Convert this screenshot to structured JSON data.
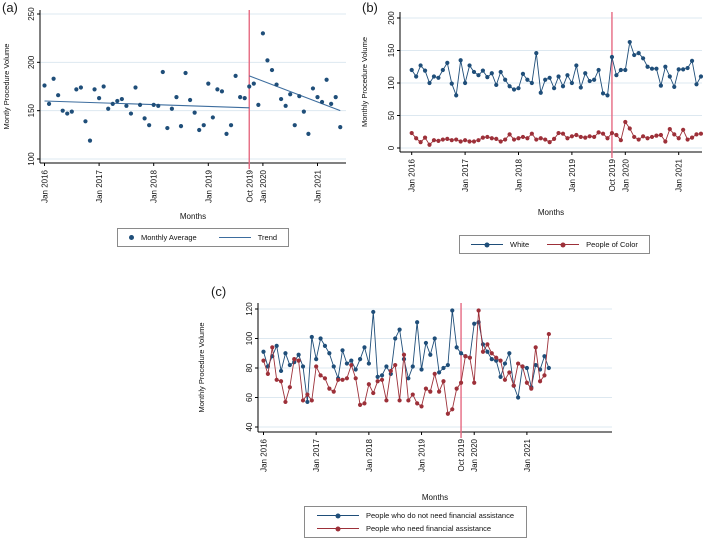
{
  "colors": {
    "background": "#ffffff",
    "grid": "#dde8f0",
    "axis": "#000000",
    "navy": "#1f4e79",
    "dark_red": "#9d3039",
    "trend_blue": "#3d6d9e",
    "vline_pink": "#e66a82"
  },
  "chart_data": [
    {
      "id": "a",
      "panel_label": "(a)",
      "type": "scatter",
      "ylabel": "Montly Procedure Volume",
      "xlabel": "Months",
      "ylim": [
        100,
        250
      ],
      "yticks": [
        100,
        150,
        200,
        250
      ],
      "x_start": "Jan 2016",
      "n_months": 66,
      "x_ticks": [
        {
          "label": "Jan 2016",
          "month": 0
        },
        {
          "label": "Jan 2017",
          "month": 12
        },
        {
          "label": "Jan 2018",
          "month": 24
        },
        {
          "label": "Jan 2019",
          "month": 36
        },
        {
          "label": "Oct 2019",
          "month": 45
        },
        {
          "label": "Jan 2020",
          "month": 48
        },
        {
          "label": "Jan 2021",
          "month": 60
        }
      ],
      "vline": {
        "month": 45,
        "label": "Oct 2019",
        "color": "#e66a82"
      },
      "series": [
        {
          "name": "Monthly Average",
          "color": "#1f4e79",
          "values": [
            176,
            157,
            183,
            166,
            150,
            147,
            149,
            172,
            174,
            139,
            119,
            172,
            163,
            175,
            152,
            157,
            160,
            162,
            155,
            147,
            174,
            156,
            142,
            135,
            156,
            155,
            190,
            132,
            152,
            164,
            134,
            189,
            161,
            148,
            130,
            135,
            178,
            143,
            172,
            170,
            126,
            135,
            186,
            164,
            163,
            175,
            178,
            156,
            230,
            202,
            192,
            177,
            162,
            155,
            167,
            135,
            165,
            149,
            126,
            173,
            164,
            159,
            182,
            157,
            164,
            133
          ]
        }
      ],
      "trend": {
        "name": "Trend",
        "color": "#3d6d9e",
        "segments": [
          {
            "months": [
              0,
              45
            ],
            "values": [
              160,
              153
            ]
          },
          {
            "months": [
              45,
              65
            ],
            "values": [
              186,
              150
            ]
          }
        ]
      },
      "legend": [
        {
          "label": "Monthly Average",
          "marker": "dot",
          "color": "#1f4e79"
        },
        {
          "label": "Trend",
          "marker": "line",
          "color": "#3d6d9e"
        }
      ]
    },
    {
      "id": "b",
      "panel_label": "(b)",
      "type": "line",
      "ylabel": "Monthly Procedure Volume",
      "xlabel": "Months",
      "ylim": [
        0,
        200
      ],
      "yticks": [
        0,
        50,
        100,
        150,
        200
      ],
      "x_start": "Jan 2016",
      "n_months": 66,
      "x_ticks": [
        {
          "label": "Jan 2016",
          "month": 0
        },
        {
          "label": "Jan 2017",
          "month": 12
        },
        {
          "label": "Jan 2018",
          "month": 24
        },
        {
          "label": "Jan 2019",
          "month": 36
        },
        {
          "label": "Oct 2019",
          "month": 45
        },
        {
          "label": "Jan 2020",
          "month": 48
        },
        {
          "label": "Jan 2021",
          "month": 60
        }
      ],
      "vline": {
        "month": 45,
        "label": "Oct 2019",
        "color": "#e66a82"
      },
      "series": [
        {
          "name": "White",
          "color": "#1f4e79",
          "values": [
            120,
            110,
            127,
            119,
            100,
            110,
            108,
            120,
            131,
            99,
            81,
            135,
            100,
            127,
            117,
            112,
            119,
            109,
            115,
            97,
            117,
            105,
            95,
            90,
            92,
            114,
            105,
            100,
            146,
            85,
            105,
            108,
            92,
            110,
            95,
            112,
            100,
            127,
            93,
            115,
            103,
            105,
            120,
            84,
            81,
            140,
            112,
            120,
            120,
            163,
            143,
            146,
            138,
            125,
            122,
            122,
            96,
            125,
            110,
            94,
            121,
            121,
            123,
            134,
            98,
            110
          ]
        },
        {
          "name": "People of Color",
          "color": "#9d3039",
          "values": [
            23,
            15,
            9,
            16,
            5,
            12,
            11,
            13,
            14,
            12,
            13,
            10,
            12,
            10,
            10,
            12,
            16,
            17,
            15,
            14,
            10,
            13,
            21,
            13,
            15,
            17,
            15,
            22,
            13,
            15,
            13,
            9,
            14,
            23,
            22,
            15,
            18,
            20,
            17,
            16,
            18,
            17,
            24,
            22,
            15,
            23,
            20,
            12,
            40,
            30,
            17,
            13,
            18,
            15,
            17,
            19,
            20,
            10,
            29,
            21,
            15,
            28,
            13,
            16,
            21,
            22
          ]
        }
      ],
      "legend": [
        {
          "label": "White",
          "marker": "line-dot",
          "color": "#1f4e79"
        },
        {
          "label": "People of Color",
          "marker": "line-dot",
          "color": "#9d3039"
        }
      ]
    },
    {
      "id": "c",
      "panel_label": "(c)",
      "type": "line",
      "ylabel": "Monthly Procedure Volume",
      "xlabel": "Months",
      "ylim": [
        40,
        120
      ],
      "yticks": [
        40,
        60,
        80,
        100,
        120
      ],
      "x_start": "Jan 2016",
      "n_months": 66,
      "x_ticks": [
        {
          "label": "Jan 2016",
          "month": 0
        },
        {
          "label": "Jan 2017",
          "month": 12
        },
        {
          "label": "Jan 2018",
          "month": 24
        },
        {
          "label": "Jan 2019",
          "month": 36
        },
        {
          "label": "Oct 2019",
          "month": 45
        },
        {
          "label": "Jan 2020",
          "month": 48
        },
        {
          "label": "Jan 2021",
          "month": 60
        }
      ],
      "vline": {
        "month": 45,
        "label": "Oct 2019",
        "color": "#e66a82"
      },
      "series": [
        {
          "name": "People who do not need financial assistance",
          "color": "#1f4e79",
          "values": [
            91,
            81,
            88,
            95,
            78,
            90,
            82,
            84,
            89,
            81,
            57,
            101,
            86,
            100,
            95,
            90,
            81,
            73,
            92,
            83,
            85,
            79,
            86,
            94,
            83,
            118,
            74,
            75,
            81,
            76,
            100,
            106,
            86,
            73,
            81,
            111,
            79,
            97,
            89,
            100,
            77,
            80,
            82,
            119,
            94,
            90,
            88,
            87,
            110,
            111,
            96,
            91,
            86,
            85,
            74,
            83,
            90,
            68,
            60,
            81,
            80,
            67,
            82,
            79,
            88,
            80
          ]
        },
        {
          "name": "People who need financial assistance",
          "color": "#9d3039",
          "values": [
            85,
            76,
            94,
            72,
            71,
            57,
            67,
            86,
            85,
            58,
            62,
            58,
            81,
            75,
            73,
            66,
            64,
            72,
            72,
            73,
            82,
            73,
            55,
            56,
            69,
            63,
            71,
            72,
            58,
            78,
            82,
            58,
            89,
            58,
            62,
            56,
            54,
            66,
            64,
            76,
            64,
            71,
            49,
            52,
            66,
            70,
            88,
            87,
            70,
            119,
            91,
            96,
            90,
            87,
            85,
            72,
            77,
            68,
            83,
            81,
            70,
            66,
            94,
            71,
            75,
            103
          ]
        }
      ],
      "legend": [
        {
          "label": "People who do not need financial assistance",
          "marker": "line-dot",
          "color": "#1f4e79"
        },
        {
          "label": "People who need financial assistance",
          "marker": "line-dot",
          "color": "#9d3039"
        }
      ]
    }
  ]
}
